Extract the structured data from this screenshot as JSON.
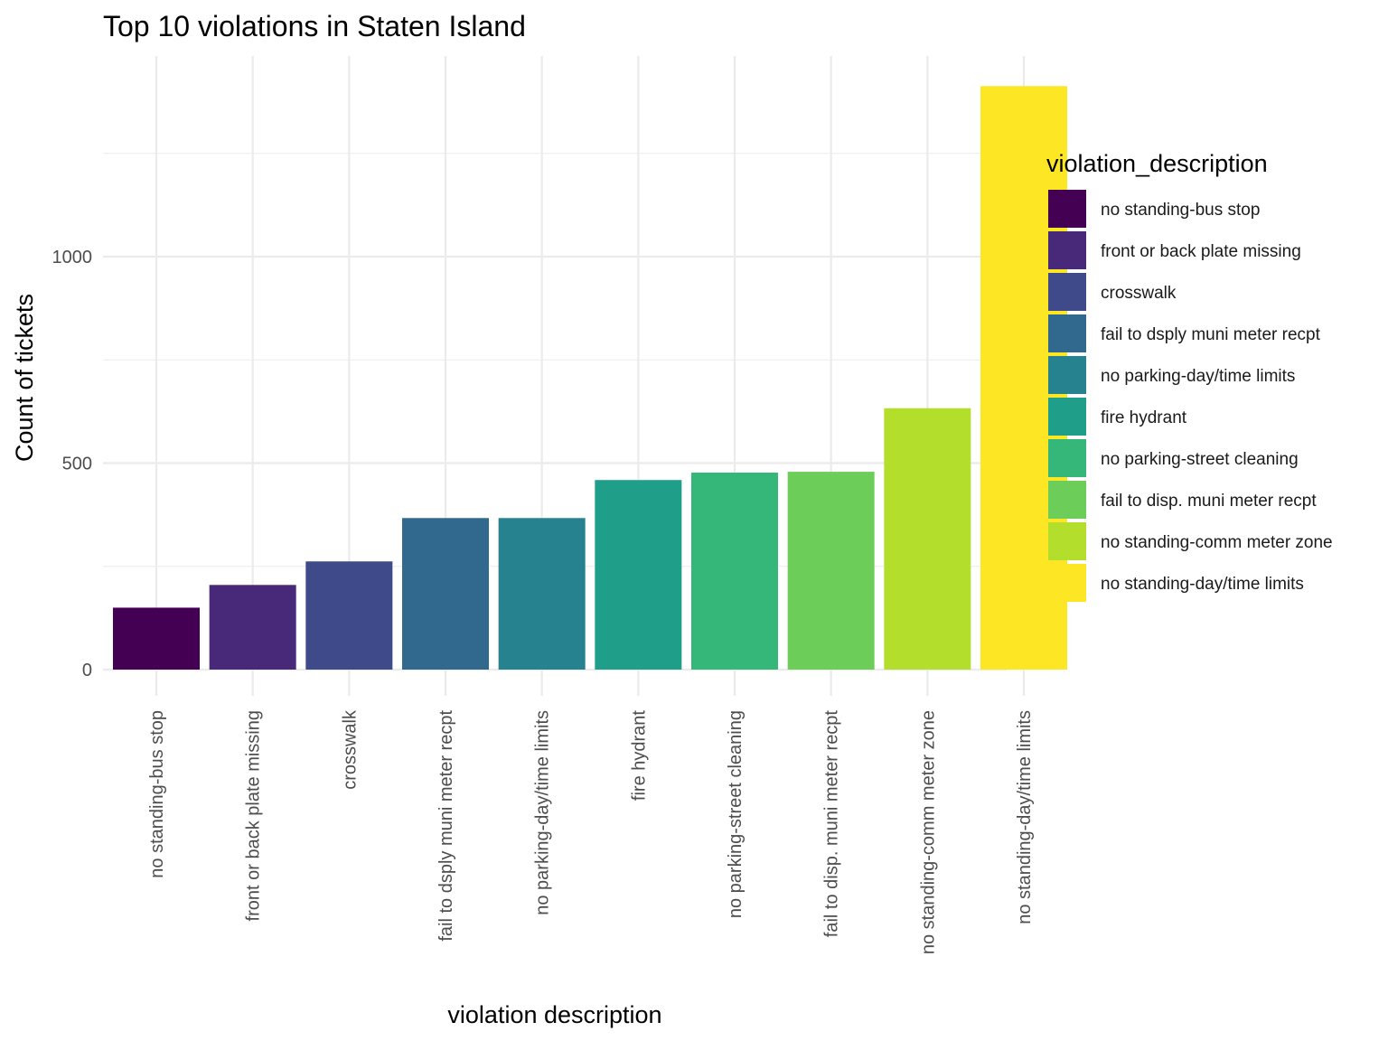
{
  "chart_data": {
    "type": "bar",
    "title": "Top 10 violations in Staten Island",
    "xlabel": "violation description",
    "ylabel": "Count of tickets",
    "legend_title": "violation_description",
    "legend_position": "right",
    "grid": true,
    "ylim": [
      0,
      1480
    ],
    "yticks": [
      0,
      500,
      1000
    ],
    "ytick_labels": [
      "0",
      "500",
      "1000"
    ],
    "categories": [
      "no standing-bus stop",
      "front or back plate missing",
      "crosswalk",
      "fail to dsply muni meter recpt",
      "no parking-day/time limits",
      "fire hydrant",
      "no parking-street cleaning",
      "fail to disp. muni meter recpt",
      "no standing-comm meter zone",
      "no standing-day/time limits"
    ],
    "values": [
      150,
      205,
      262,
      367,
      367,
      459,
      477,
      479,
      633,
      1413
    ],
    "colors": [
      "#440154",
      "#482878",
      "#3E4A89",
      "#31688E",
      "#26828E",
      "#1F9E89",
      "#35B779",
      "#6DCD59",
      "#B4DE2C",
      "#FDE725"
    ]
  }
}
